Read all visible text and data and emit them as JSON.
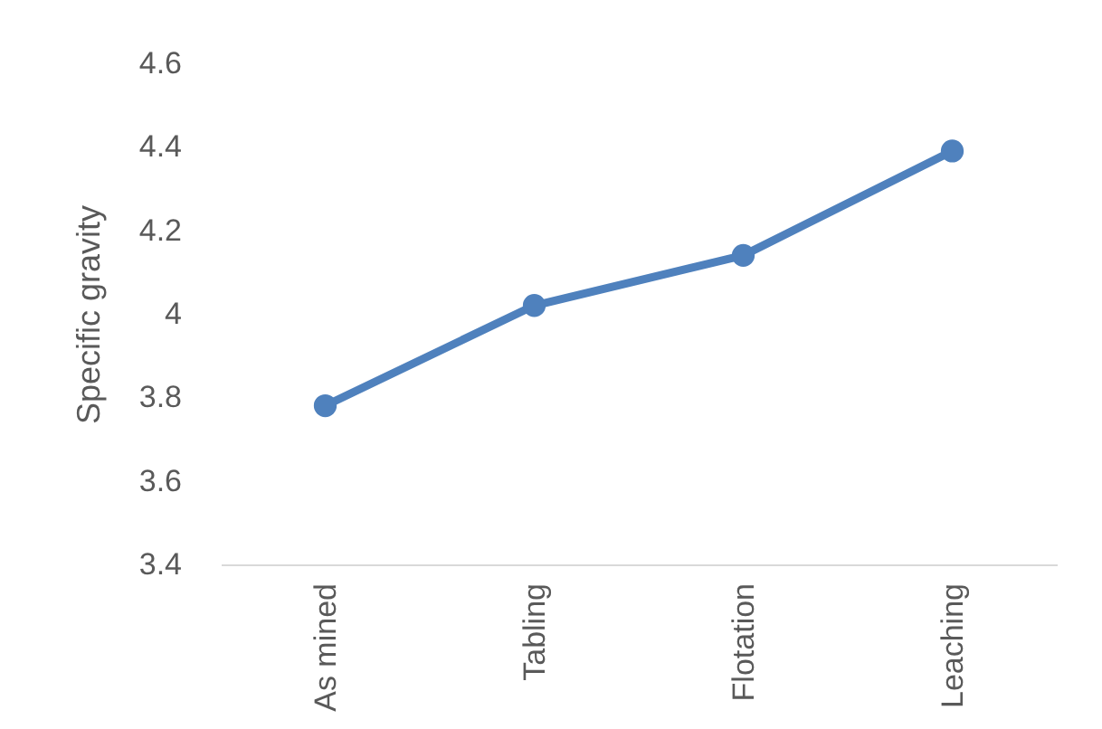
{
  "chart_data": {
    "type": "line",
    "ylabel": "Specific gravity",
    "categories": [
      "As mined",
      "Tabling",
      "Flotation",
      "Leaching"
    ],
    "series": [
      {
        "color": "#4f81bd",
        "values": [
          3.78,
          4.02,
          4.14,
          4.39
        ]
      }
    ],
    "ylim": [
      3.4,
      4.6
    ],
    "yticks": [
      3.4,
      3.6,
      3.8,
      4,
      4.2,
      4.4,
      4.6
    ],
    "marker": "circle",
    "line_style": "solid"
  }
}
